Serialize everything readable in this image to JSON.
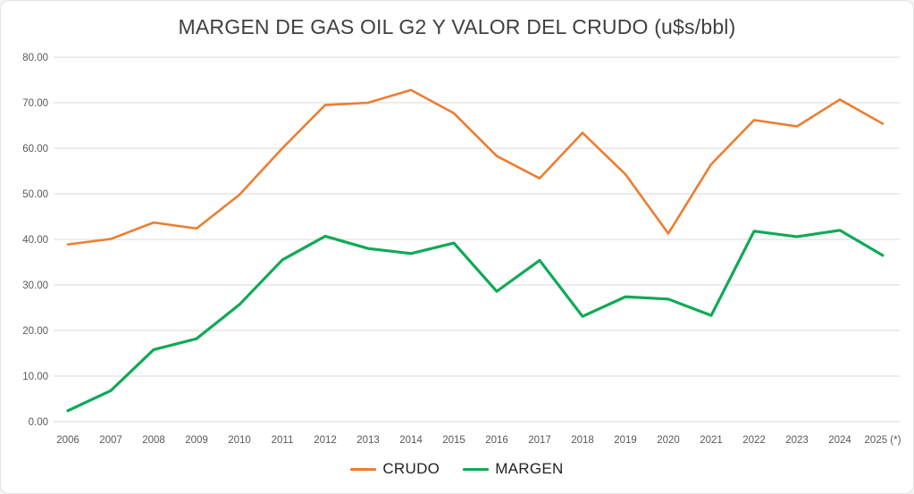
{
  "figure": {
    "background": "#ffffff",
    "border_color": "#e2e2e2"
  },
  "styles": {
    "grid_color": "#d9d9d9",
    "axis_text_color": "#595959",
    "title_color": "#404040",
    "legend_text_color": "#212121"
  },
  "chart_data": {
    "type": "line",
    "title": "MARGEN DE GAS OIL G2 Y VALOR DEL CRUDO (u$s/bbl)",
    "xlabel": "",
    "ylabel": "",
    "grid": true,
    "legend_position": "bottom",
    "categories": [
      "2006",
      "2007",
      "2008",
      "2009",
      "2010",
      "2011",
      "2012",
      "2013",
      "2014",
      "2015",
      "2016",
      "2017",
      "2018",
      "2019",
      "2020",
      "2021",
      "2022",
      "2023",
      "2024",
      "2025 (*)"
    ],
    "y_axis": {
      "min": 0,
      "max": 80,
      "step": 10,
      "tick_labels": [
        "0.00",
        "10.00",
        "20.00",
        "30.00",
        "40.00",
        "50.00",
        "60.00",
        "70.00",
        "80.00"
      ]
    },
    "series": [
      {
        "name": "CRUDO",
        "color": "#ED7D31",
        "values": [
          38.9,
          40.1,
          43.7,
          42.4,
          49.8,
          60.0,
          69.5,
          70.0,
          72.8,
          67.7,
          58.3,
          53.4,
          63.4,
          54.3,
          41.3,
          56.5,
          66.2,
          64.8,
          70.7,
          65.4
        ]
      },
      {
        "name": "MARGEN",
        "color": "#10A957",
        "values": [
          2.4,
          6.8,
          15.8,
          18.2,
          25.7,
          35.5,
          40.7,
          38.0,
          36.9,
          39.2,
          28.6,
          35.4,
          23.1,
          27.4,
          26.9,
          23.3,
          41.8,
          40.6,
          42.0,
          36.5
        ]
      }
    ]
  }
}
